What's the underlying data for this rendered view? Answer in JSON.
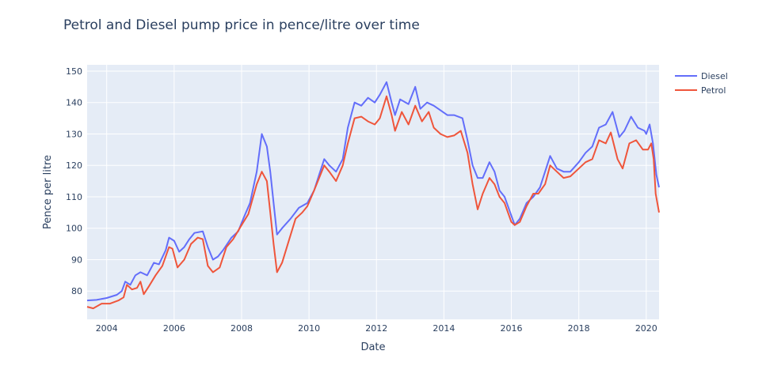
{
  "chart_data": {
    "type": "line",
    "title": "Petrol and Diesel pump price in pence/litre over time",
    "xlabel": "Date",
    "ylabel": "Pence per litre",
    "x_ticks": [
      "2004",
      "2006",
      "2008",
      "2010",
      "2012",
      "2014",
      "2016",
      "2018",
      "2020"
    ],
    "y_ticks": [
      "80",
      "90",
      "100",
      "110",
      "120",
      "130",
      "140",
      "150"
    ],
    "xlim": [
      2003.42,
      2020.38
    ],
    "ylim": [
      71,
      152
    ],
    "grid": true,
    "legend_position": "top-right",
    "colors": {
      "plot_bg": "#e5ecf6",
      "grid": "#ffffff",
      "text": "#2a3f5f"
    },
    "series": [
      {
        "name": "Diesel",
        "color": "#636efa",
        "points": [
          [
            2003.42,
            77.0
          ],
          [
            2003.7,
            77.2
          ],
          [
            2004.0,
            77.8
          ],
          [
            2004.3,
            78.8
          ],
          [
            2004.45,
            80.0
          ],
          [
            2004.55,
            83.0
          ],
          [
            2004.7,
            82.0
          ],
          [
            2004.85,
            85.0
          ],
          [
            2005.0,
            86.0
          ],
          [
            2005.2,
            85.0
          ],
          [
            2005.4,
            89.0
          ],
          [
            2005.55,
            88.5
          ],
          [
            2005.75,
            93.0
          ],
          [
            2005.85,
            97.0
          ],
          [
            2006.0,
            96.0
          ],
          [
            2006.15,
            92.5
          ],
          [
            2006.3,
            94.0
          ],
          [
            2006.45,
            96.5
          ],
          [
            2006.6,
            98.5
          ],
          [
            2006.85,
            99.0
          ],
          [
            2007.0,
            94.0
          ],
          [
            2007.15,
            90.0
          ],
          [
            2007.3,
            91.0
          ],
          [
            2007.45,
            93.0
          ],
          [
            2007.7,
            97.0
          ],
          [
            2007.9,
            99.0
          ],
          [
            2008.05,
            103.0
          ],
          [
            2008.25,
            108.0
          ],
          [
            2008.45,
            118.0
          ],
          [
            2008.6,
            130.0
          ],
          [
            2008.75,
            126.0
          ],
          [
            2008.85,
            118.0
          ],
          [
            2008.95,
            108.0
          ],
          [
            2009.05,
            98.0
          ],
          [
            2009.2,
            100.0
          ],
          [
            2009.45,
            103.0
          ],
          [
            2009.7,
            106.5
          ],
          [
            2009.95,
            108.0
          ],
          [
            2010.15,
            112.0
          ],
          [
            2010.3,
            117.0
          ],
          [
            2010.45,
            122.0
          ],
          [
            2010.6,
            120.0
          ],
          [
            2010.8,
            118.0
          ],
          [
            2011.0,
            122.0
          ],
          [
            2011.15,
            132.0
          ],
          [
            2011.35,
            140.0
          ],
          [
            2011.55,
            139.0
          ],
          [
            2011.75,
            141.5
          ],
          [
            2011.95,
            140.0
          ],
          [
            2012.1,
            142.5
          ],
          [
            2012.3,
            146.5
          ],
          [
            2012.45,
            140.0
          ],
          [
            2012.55,
            136.0
          ],
          [
            2012.7,
            141.0
          ],
          [
            2012.95,
            139.5
          ],
          [
            2013.15,
            145.0
          ],
          [
            2013.3,
            138.0
          ],
          [
            2013.5,
            140.0
          ],
          [
            2013.7,
            139.0
          ],
          [
            2013.9,
            137.5
          ],
          [
            2014.1,
            136.0
          ],
          [
            2014.3,
            136.0
          ],
          [
            2014.55,
            135.0
          ],
          [
            2014.7,
            128.0
          ],
          [
            2014.85,
            120.0
          ],
          [
            2015.0,
            116.0
          ],
          [
            2015.15,
            116.0
          ],
          [
            2015.35,
            121.0
          ],
          [
            2015.5,
            118.0
          ],
          [
            2015.65,
            112.0
          ],
          [
            2015.8,
            110.0
          ],
          [
            2016.0,
            104.0
          ],
          [
            2016.1,
            101.0
          ],
          [
            2016.25,
            103.0
          ],
          [
            2016.45,
            108.0
          ],
          [
            2016.65,
            110.0
          ],
          [
            2016.85,
            113.0
          ],
          [
            2017.0,
            118.0
          ],
          [
            2017.15,
            123.0
          ],
          [
            2017.35,
            119.0
          ],
          [
            2017.55,
            118.0
          ],
          [
            2017.75,
            118.0
          ],
          [
            2018.0,
            121.0
          ],
          [
            2018.2,
            124.0
          ],
          [
            2018.4,
            126.0
          ],
          [
            2018.6,
            132.0
          ],
          [
            2018.8,
            133.0
          ],
          [
            2019.0,
            137.0
          ],
          [
            2019.2,
            129.0
          ],
          [
            2019.35,
            131.0
          ],
          [
            2019.55,
            135.5
          ],
          [
            2019.75,
            132.0
          ],
          [
            2019.95,
            131.0
          ],
          [
            2020.0,
            130.0
          ],
          [
            2020.1,
            133.0
          ],
          [
            2020.2,
            127.0
          ],
          [
            2020.3,
            117.0
          ],
          [
            2020.38,
            113.0
          ]
        ]
      },
      {
        "name": "Petrol",
        "color": "#ef553b",
        "points": [
          [
            2003.42,
            75.0
          ],
          [
            2003.6,
            74.5
          ],
          [
            2003.85,
            76.0
          ],
          [
            2004.1,
            76.0
          ],
          [
            2004.35,
            77.0
          ],
          [
            2004.5,
            78.0
          ],
          [
            2004.6,
            82.0
          ],
          [
            2004.75,
            80.5
          ],
          [
            2004.9,
            81.0
          ],
          [
            2005.0,
            83.0
          ],
          [
            2005.1,
            79.0
          ],
          [
            2005.25,
            81.5
          ],
          [
            2005.45,
            85.0
          ],
          [
            2005.65,
            88.0
          ],
          [
            2005.85,
            94.0
          ],
          [
            2005.95,
            93.5
          ],
          [
            2006.1,
            87.5
          ],
          [
            2006.3,
            90.0
          ],
          [
            2006.5,
            95.0
          ],
          [
            2006.7,
            97.0
          ],
          [
            2006.85,
            96.5
          ],
          [
            2007.0,
            88.0
          ],
          [
            2007.15,
            86.0
          ],
          [
            2007.35,
            87.5
          ],
          [
            2007.55,
            94.0
          ],
          [
            2007.75,
            96.5
          ],
          [
            2008.0,
            101.0
          ],
          [
            2008.2,
            104.5
          ],
          [
            2008.45,
            114.0
          ],
          [
            2008.6,
            118.0
          ],
          [
            2008.75,
            115.0
          ],
          [
            2008.85,
            105.0
          ],
          [
            2008.95,
            95.0
          ],
          [
            2009.05,
            86.0
          ],
          [
            2009.2,
            89.0
          ],
          [
            2009.4,
            96.0
          ],
          [
            2009.6,
            103.0
          ],
          [
            2009.8,
            105.0
          ],
          [
            2009.95,
            107.0
          ],
          [
            2010.15,
            112.0
          ],
          [
            2010.3,
            116.0
          ],
          [
            2010.45,
            120.0
          ],
          [
            2010.6,
            118.0
          ],
          [
            2010.8,
            115.0
          ],
          [
            2011.0,
            120.0
          ],
          [
            2011.15,
            127.0
          ],
          [
            2011.35,
            135.0
          ],
          [
            2011.55,
            135.5
          ],
          [
            2011.75,
            134.0
          ],
          [
            2011.95,
            133.0
          ],
          [
            2012.1,
            135.0
          ],
          [
            2012.3,
            142.0
          ],
          [
            2012.45,
            136.0
          ],
          [
            2012.55,
            131.0
          ],
          [
            2012.75,
            137.0
          ],
          [
            2012.95,
            133.0
          ],
          [
            2013.15,
            139.0
          ],
          [
            2013.35,
            134.0
          ],
          [
            2013.55,
            137.0
          ],
          [
            2013.7,
            132.0
          ],
          [
            2013.9,
            130.0
          ],
          [
            2014.1,
            129.0
          ],
          [
            2014.3,
            129.5
          ],
          [
            2014.5,
            131.0
          ],
          [
            2014.7,
            124.0
          ],
          [
            2014.85,
            114.0
          ],
          [
            2015.0,
            106.0
          ],
          [
            2015.15,
            111.0
          ],
          [
            2015.35,
            116.0
          ],
          [
            2015.5,
            114.0
          ],
          [
            2015.65,
            110.0
          ],
          [
            2015.8,
            108.0
          ],
          [
            2016.0,
            102.0
          ],
          [
            2016.1,
            101.0
          ],
          [
            2016.25,
            102.0
          ],
          [
            2016.45,
            107.0
          ],
          [
            2016.65,
            111.0
          ],
          [
            2016.8,
            111.0
          ],
          [
            2017.0,
            114.0
          ],
          [
            2017.15,
            120.0
          ],
          [
            2017.35,
            118.0
          ],
          [
            2017.55,
            116.0
          ],
          [
            2017.75,
            116.5
          ],
          [
            2018.0,
            119.0
          ],
          [
            2018.2,
            121.0
          ],
          [
            2018.4,
            122.0
          ],
          [
            2018.6,
            128.0
          ],
          [
            2018.8,
            127.0
          ],
          [
            2018.95,
            130.5
          ],
          [
            2019.15,
            122.0
          ],
          [
            2019.3,
            119.0
          ],
          [
            2019.5,
            127.0
          ],
          [
            2019.7,
            128.0
          ],
          [
            2019.9,
            125.0
          ],
          [
            2020.05,
            125.0
          ],
          [
            2020.15,
            127.0
          ],
          [
            2020.22,
            122.0
          ],
          [
            2020.28,
            111.0
          ],
          [
            2020.38,
            105.0
          ]
        ]
      }
    ]
  }
}
